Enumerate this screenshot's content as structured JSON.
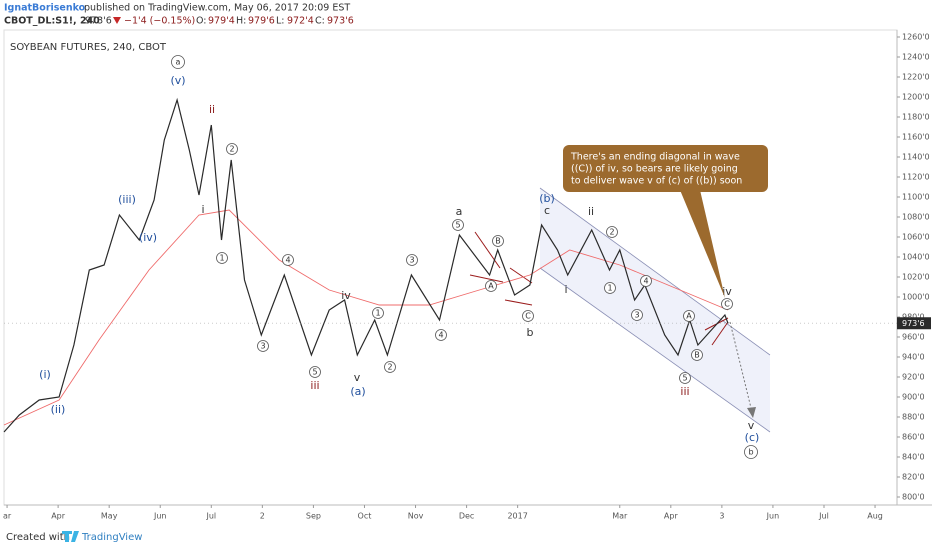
{
  "header": {
    "author": "IgnatBorisenko",
    "published": "published on TradingView.com, May 06, 2017 20:09 EST",
    "symbol": "CBOT_DL:S1!, 240",
    "last": "973'6",
    "change": "−1'4 (−0.15%)",
    "open_label": "O:",
    "open": "979'4",
    "high_label": "H:",
    "high": "979'6",
    "low_label": "L:",
    "low": "972'4",
    "close_label": "C:",
    "close": "973'6"
  },
  "chart_data": {
    "type": "line",
    "title": "SOYBEAN FUTURES, 240, CBOT",
    "series": [
      {
        "color": "#2a2a2a",
        "x": [
          -0.06,
          0.24,
          0.63,
          1.02,
          1.31,
          1.61,
          1.9,
          2.2,
          2.59,
          2.88,
          3.08,
          3.33,
          3.57,
          3.76,
          4.0,
          4.2,
          4.39,
          4.65,
          4.98,
          5.43,
          5.96,
          6.31,
          6.61,
          6.86,
          7.2,
          7.45,
          7.92,
          8.47,
          8.86,
          9.45,
          9.61,
          9.94,
          10.24,
          10.47,
          10.78,
          10.98,
          11.45,
          11.8,
          12.0,
          12.29,
          12.49,
          12.88,
          13.14,
          13.37,
          13.53,
          14.06,
          14.12
        ],
        "values": [
          865,
          882,
          897,
          900,
          952,
          1027,
          1032,
          1082,
          1057,
          1097,
          1157,
          1197,
          1147,
          1102,
          1172,
          1057,
          1137,
          1017,
          962,
          1022,
          942,
          987,
          997,
          942,
          977,
          942,
          1022,
          977,
          1062,
          1022,
          1047,
          1002,
          1012,
          1072,
          1047,
          1022,
          1067,
          1027,
          1047,
          997,
          1012,
          962,
          942,
          977,
          952,
          982,
          973.75
        ]
      },
      {
        "color": "#ef6b6b",
        "x": [
          -0.06,
          1.02,
          1.8,
          2.78,
          3.76,
          4.35,
          5.33,
          6.31,
          7.29,
          8.27,
          9.25,
          10.24,
          11.02,
          12.0,
          13.18,
          14.12
        ],
        "values": [
          872,
          897,
          957,
          1027,
          1082,
          1087,
          1037,
          1007,
          992,
          992,
          1007,
          1022,
          1047,
          1032,
          1007,
          987
        ]
      }
    ],
    "last_price": {
      "value": 973.75,
      "label": "973'6"
    },
    "xlim": [
      -0.06,
      17.43
    ],
    "xticks": [
      {
        "value": 0,
        "label": "ar"
      },
      {
        "value": 1,
        "label": "Apr"
      },
      {
        "value": 2,
        "label": "May"
      },
      {
        "value": 3,
        "label": "Jun"
      },
      {
        "value": 4,
        "label": "Jul"
      },
      {
        "value": 5,
        "label": "2"
      },
      {
        "value": 6,
        "label": "Sep"
      },
      {
        "value": 7,
        "label": "Oct"
      },
      {
        "value": 8,
        "label": "Nov"
      },
      {
        "value": 9,
        "label": "Dec"
      },
      {
        "value": 10,
        "label": "2017"
      },
      {
        "value": 12,
        "label": "Mar"
      },
      {
        "value": 13,
        "label": "Apr"
      },
      {
        "value": 14,
        "label": "3"
      },
      {
        "value": 15,
        "label": "Jun"
      },
      {
        "value": 16,
        "label": "Jul"
      },
      {
        "value": 17,
        "label": "Aug"
      }
    ],
    "ylim": [
      792,
      1267
    ],
    "yticks": [
      {
        "value": 800,
        "label": "800'0"
      },
      {
        "value": 820,
        "label": "820'0"
      },
      {
        "value": 840,
        "label": "840'0"
      },
      {
        "value": 860,
        "label": "860'0"
      },
      {
        "value": 880,
        "label": "880'0"
      },
      {
        "value": 900,
        "label": "900'0"
      },
      {
        "value": 920,
        "label": "920'0"
      },
      {
        "value": 940,
        "label": "940'0"
      },
      {
        "value": 960,
        "label": "960'0"
      },
      {
        "value": 980,
        "label": "980'0"
      },
      {
        "value": 1000,
        "label": "1000'0"
      },
      {
        "value": 1020,
        "label": "1020'0"
      },
      {
        "value": 1040,
        "label": "1040'0"
      },
      {
        "value": 1060,
        "label": "1060'0"
      },
      {
        "value": 1080,
        "label": "1080'0"
      },
      {
        "value": 1100,
        "label": "1100'0"
      },
      {
        "value": 1120,
        "label": "1120'0"
      },
      {
        "value": 1140,
        "label": "1140'0"
      },
      {
        "value": 1160,
        "label": "1160'0"
      },
      {
        "value": 1180,
        "label": "1180'0"
      },
      {
        "value": 1200,
        "label": "1200'0"
      },
      {
        "value": 1220,
        "label": "1220'0"
      },
      {
        "value": 1240,
        "label": "1240'0"
      },
      {
        "value": 1260,
        "label": "1260'0"
      }
    ],
    "circled_waves": [
      "a",
      "2",
      "1",
      "4",
      "3",
      "5",
      "1",
      "2",
      "3",
      "4",
      "5",
      "B",
      "A",
      "C",
      "2",
      "1",
      "4",
      "3",
      "A",
      "B",
      "5",
      "C",
      "b"
    ],
    "waves": [
      "(v)",
      "ii",
      "i",
      "(iii)",
      "(iv)",
      "(i)",
      "(ii)",
      "iii",
      "iv",
      "v",
      "(a)",
      "a",
      "b",
      "(b)",
      "c",
      "i",
      "ii",
      "iii",
      "iv",
      "v",
      "(c)"
    ],
    "callout": [
      "There's an ending diagonal in wave",
      "((C)) of iv, so bears are likely going",
      "to deliver wave v of (c) of ((b)) soon"
    ]
  },
  "footer": {
    "created": "Created with",
    "brand": "TradingView"
  }
}
